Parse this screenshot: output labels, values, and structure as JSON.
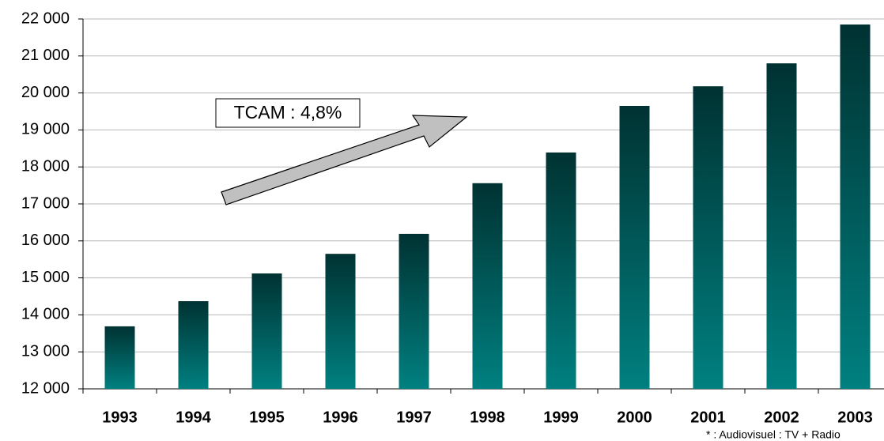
{
  "chart_data": {
    "type": "bar",
    "categories": [
      "1993",
      "1994",
      "1995",
      "1996",
      "1997",
      "1998",
      "1999",
      "2000",
      "2001",
      "2002",
      "2003"
    ],
    "values": [
      13690,
      14370,
      15120,
      15650,
      16190,
      17560,
      18390,
      19650,
      20180,
      20800,
      21850
    ],
    "gradient": [
      "#003232",
      "#008080"
    ],
    "ylim": [
      12000,
      22000
    ],
    "yticks": [
      {
        "value": 12000,
        "label": "12 000"
      },
      {
        "value": 13000,
        "label": "13 000"
      },
      {
        "value": 14000,
        "label": "14 000"
      },
      {
        "value": 15000,
        "label": "15 000"
      },
      {
        "value": 16000,
        "label": "16 000"
      },
      {
        "value": 17000,
        "label": "17 000"
      },
      {
        "value": 18000,
        "label": "18 000"
      },
      {
        "value": 19000,
        "label": "19 000"
      },
      {
        "value": 20000,
        "label": "20 000"
      },
      {
        "value": 21000,
        "label": "21 000"
      },
      {
        "value": 22000,
        "label": "22 000"
      }
    ],
    "grid": true,
    "annotation": "TCAM : 4,8%",
    "footnote": "* : Audiovisuel : TV + Radio"
  }
}
